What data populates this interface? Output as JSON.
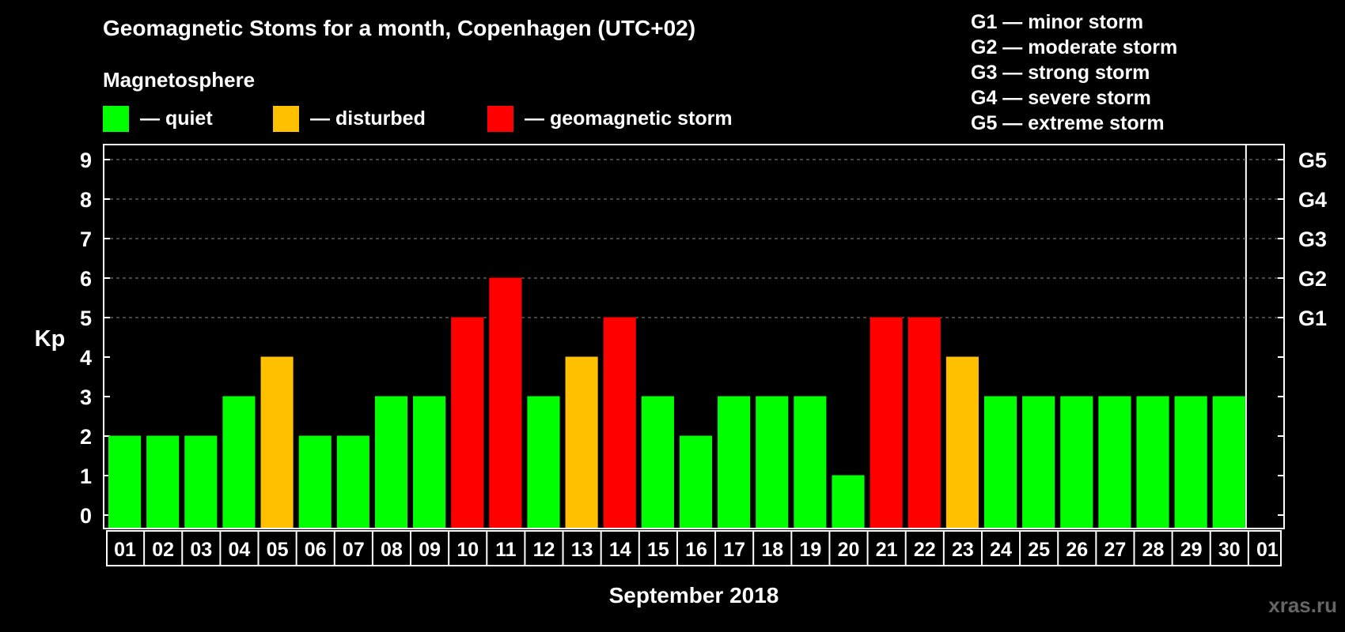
{
  "title": "Geomagnetic Stoms for a month, Copenhagen (UTC+02)",
  "magnetosphere": {
    "title": "Magnetosphere",
    "items": [
      {
        "label": "— quiet",
        "color": "#00ff00"
      },
      {
        "label": "— disturbed",
        "color": "#ffc000"
      },
      {
        "label": "— geomagnetic storm",
        "color": "#ff0000"
      }
    ]
  },
  "storm_scale": [
    "G1 — minor storm",
    "G2 — moderate storm",
    "G3 — strong storm",
    "G4 — severe storm",
    "G5 — extreme storm"
  ],
  "watermark": "xras.ru",
  "chart_data": {
    "type": "bar",
    "title": "Geomagnetic Stoms for a month, Copenhagen (UTC+02)",
    "xlabel": "September 2018",
    "ylabel": "Kp",
    "ylim": [
      0,
      9
    ],
    "yticks": [
      "0",
      "1",
      "2",
      "3",
      "4",
      "5",
      "6",
      "7",
      "8",
      "9"
    ],
    "right_axis_labels": [
      {
        "kp": 5,
        "label": "G1"
      },
      {
        "kp": 6,
        "label": "G2"
      },
      {
        "kp": 7,
        "label": "G3"
      },
      {
        "kp": 8,
        "label": "G4"
      },
      {
        "kp": 9,
        "label": "G5"
      }
    ],
    "grid": "dashed horizontal lines at Kp 5 to 9",
    "categories": [
      "01",
      "02",
      "03",
      "04",
      "05",
      "06",
      "07",
      "08",
      "09",
      "10",
      "11",
      "12",
      "13",
      "14",
      "15",
      "16",
      "17",
      "18",
      "19",
      "20",
      "21",
      "22",
      "23",
      "24",
      "25",
      "26",
      "27",
      "28",
      "29",
      "30",
      "01"
    ],
    "values": [
      2,
      2,
      2,
      3,
      4,
      2,
      2,
      3,
      3,
      5,
      6,
      3,
      4,
      5,
      3,
      2,
      3,
      3,
      3,
      1,
      5,
      5,
      4,
      3,
      3,
      3,
      3,
      3,
      3,
      3,
      null
    ],
    "colors": {
      "quiet": "#00ff00",
      "disturbed": "#ffc000",
      "storm": "#ff0000"
    }
  }
}
